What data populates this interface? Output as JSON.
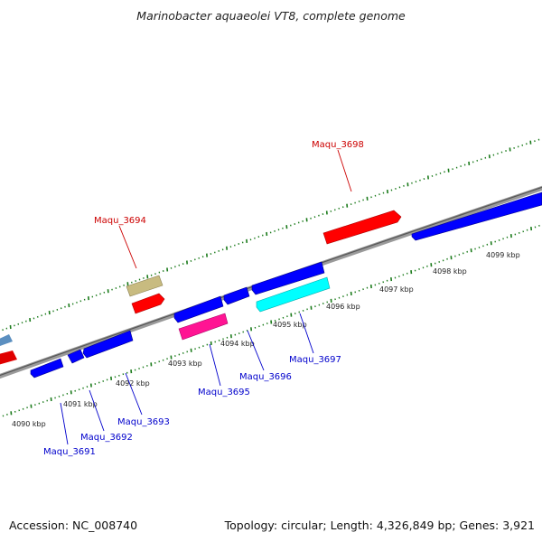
{
  "title": "Marinobacter aquaeolei VT8, complete genome",
  "footer": {
    "accession": "Accession: NC_008740",
    "stats": "Topology: circular; Length: 4,326,849 bp; Genes: 3,921"
  },
  "colors": {
    "forward_gene": "#ff0000",
    "reverse_gene": "#0000ff",
    "label_forward": "#cc0000",
    "label_reverse": "#0000cc",
    "tick": "#1a7a1a",
    "backbone": "#888888"
  },
  "ticks": [
    "4090 kbp",
    "4091 kbp",
    "4092 kbp",
    "4093 kbp",
    "4094 kbp",
    "4095 kbp",
    "4096 kbp",
    "4097 kbp",
    "4098 kbp",
    "4099 kbp"
  ],
  "genes": {
    "forward": [
      {
        "name": "Maqu_3694",
        "color": "#ff0000"
      },
      {
        "name": "Maqu_3698",
        "color": "#ff0000"
      }
    ],
    "reverse": [
      {
        "name": "Maqu_3691",
        "color": "#0000ff"
      },
      {
        "name": "Maqu_3692",
        "color": "#0000ff"
      },
      {
        "name": "Maqu_3693",
        "color": "#0000ff"
      },
      {
        "name": "Maqu_3695",
        "color": "#ff1493"
      },
      {
        "name": "Maqu_3696",
        "color": "#0000ff"
      },
      {
        "name": "Maqu_3697",
        "color": "#00ffff"
      }
    ]
  }
}
